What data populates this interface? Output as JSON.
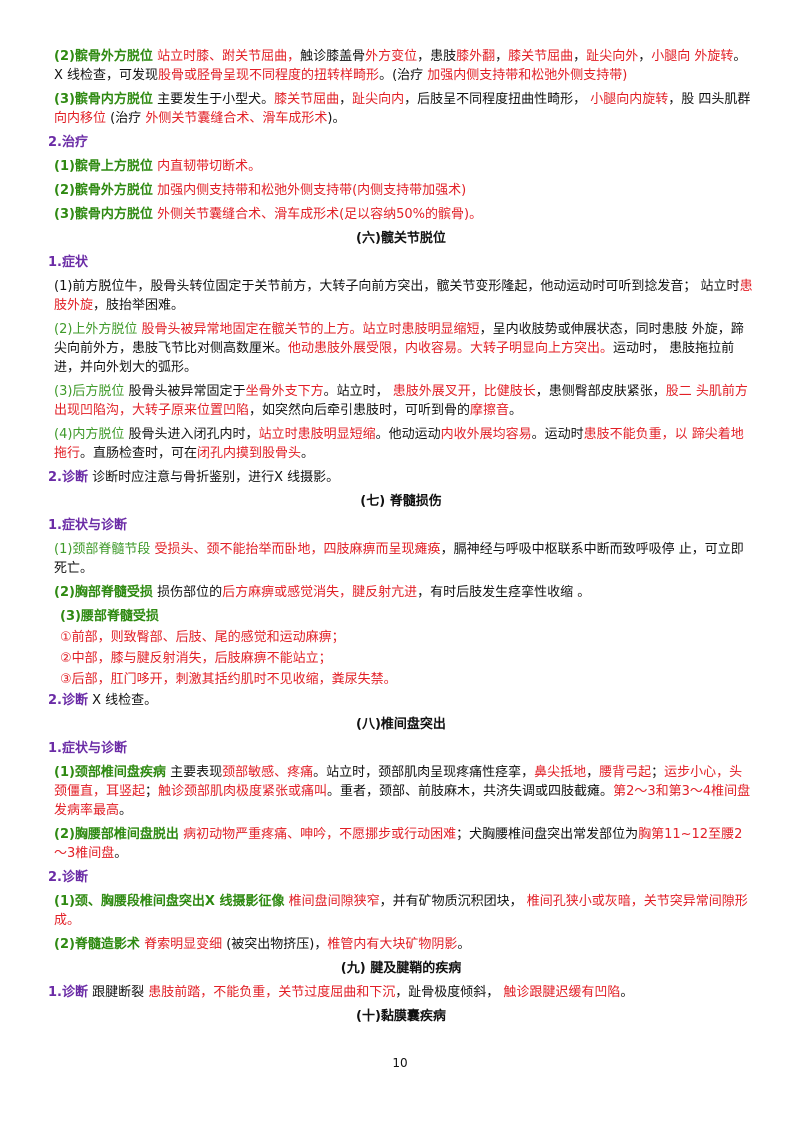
{
  "paragraphs": [
    {
      "kind": "item",
      "runs": [
        {
          "text": "(2)髌骨外方脱位",
          "style": "g"
        },
        {
          "text": " 站立时膝、跗关节屈曲，",
          "style": "r"
        },
        {
          "text": "触诊膝盖骨",
          "style": "k"
        },
        {
          "text": "外方变位",
          "style": "r"
        },
        {
          "text": "，患肢",
          "style": "k"
        },
        {
          "text": "膝外翻",
          "style": "r"
        },
        {
          "text": "，",
          "style": "k"
        },
        {
          "text": "膝关节屈曲",
          "style": "r"
        },
        {
          "text": "，",
          "style": "k"
        },
        {
          "text": "趾尖向外",
          "style": "r"
        },
        {
          "text": "，",
          "style": "k"
        },
        {
          "text": "小腿向 外旋转",
          "style": "r"
        },
        {
          "text": "。X 线检查，可发现",
          "style": "k"
        },
        {
          "text": "股骨或胫骨呈现不同程度的扭转样畸形",
          "style": "r"
        },
        {
          "text": "。(治疗 ",
          "style": "k"
        },
        {
          "text": " 加强内侧支持带和松弛外侧支持带)",
          "style": "r"
        }
      ]
    },
    {
      "kind": "item",
      "runs": [
        {
          "text": "(3)髌骨内方脱位",
          "style": "g"
        },
        {
          "text": " 主要发生于小型犬。",
          "style": "k"
        },
        {
          "text": "膝关节屈曲",
          "style": "r"
        },
        {
          "text": "，",
          "style": "k"
        },
        {
          "text": "趾尖向内",
          "style": "r"
        },
        {
          "text": "，后肢呈不同程度扭曲性畸形， ",
          "style": "k"
        },
        {
          "text": "小腿向内旋转",
          "style": "r"
        },
        {
          "text": "，股 四头肌群",
          "style": "k"
        },
        {
          "text": "向内移位",
          "style": "r"
        },
        {
          "text": " (治疗 ",
          "style": "k"
        },
        {
          "text": " 外侧关节囊缝合术、滑车成形术",
          "style": "r"
        },
        {
          "text": ")。",
          "style": "k"
        }
      ]
    },
    {
      "kind": "sub",
      "runs": [
        {
          "text": "2.治疗",
          "style": "p"
        }
      ]
    },
    {
      "kind": "item",
      "runs": [
        {
          "text": "(1)髌骨上方脱位",
          "style": "g"
        },
        {
          "text": " 内直韧带切断术。",
          "style": "r"
        }
      ]
    },
    {
      "kind": "item",
      "runs": [
        {
          "text": "(2)髌骨外方脱位",
          "style": "g"
        },
        {
          "text": " 加强内侧支持带和松弛外侧支持带(内侧支持带加强术)",
          "style": "r"
        }
      ]
    },
    {
      "kind": "item",
      "runs": [
        {
          "text": "(3)髌骨内方脱位",
          "style": "g"
        },
        {
          "text": " 外侧关节囊缝合术、滑车成形术(足以容纳50%的髌骨)。",
          "style": "r"
        }
      ]
    },
    {
      "kind": "heading",
      "runs": [
        {
          "text": "(六)髋关节脱位",
          "style": "b"
        }
      ]
    },
    {
      "kind": "sub",
      "runs": [
        {
          "text": "1.症状",
          "style": "p"
        }
      ]
    },
    {
      "kind": "item",
      "runs": [
        {
          "text": "(1)前方脱位牛，股骨头转位固定于关节前方，大转子向前方突出，髋关节变形隆起，他动运动时可听到捻发音； 站立时",
          "style": "k"
        },
        {
          "text": "患肢外旋",
          "style": "r"
        },
        {
          "text": "，肢抬举困难。",
          "style": "k"
        }
      ]
    },
    {
      "kind": "item",
      "runs": [
        {
          "text": "(2)上外方脱位",
          "style": "o"
        },
        {
          "text": " 股骨头被异常地固定在髋关节的上方。站立时患肢明显缩短",
          "style": "r"
        },
        {
          "text": "，呈内收肢势或伸展状态，同时患肢 外旋，蹄尖向前外方，患肢飞节比对侧高数厘米。",
          "style": "k"
        },
        {
          "text": "他动患肢外展受限，内收容易。大转子明显向上方突出。",
          "style": "r"
        },
        {
          "text": "运动时， 患肢拖拉前进，并向外划大的弧形。",
          "style": "k"
        }
      ]
    },
    {
      "kind": "item",
      "runs": [
        {
          "text": "(3)后方脱位",
          "style": "o"
        },
        {
          "text": " 股骨头被异常固定于",
          "style": "k"
        },
        {
          "text": "坐骨外支下方",
          "style": "r"
        },
        {
          "text": "。站立时， ",
          "style": "k"
        },
        {
          "text": "患肢外展叉开，比健肢长",
          "style": "r"
        },
        {
          "text": "，患侧臀部皮肤紧张，",
          "style": "k"
        },
        {
          "text": "股二 头肌前方出现凹陷沟，大转子原来位置凹陷",
          "style": "r"
        },
        {
          "text": "，如突然向后牵引患肢时，可听到骨的",
          "style": "k"
        },
        {
          "text": "摩擦音",
          "style": "r"
        },
        {
          "text": "。",
          "style": "k"
        }
      ]
    },
    {
      "kind": "item",
      "runs": [
        {
          "text": "(4)内方脱位",
          "style": "o"
        },
        {
          "text": " 股骨头进入闭孔内时，",
          "style": "k"
        },
        {
          "text": "站立时患肢明显短缩",
          "style": "r"
        },
        {
          "text": "。他动运动",
          "style": "k"
        },
        {
          "text": "内收外展均容易",
          "style": "r"
        },
        {
          "text": "。运动时",
          "style": "k"
        },
        {
          "text": "患肢不能负重，以 蹄尖着地拖行",
          "style": "r"
        },
        {
          "text": "。直肠检查时，可在",
          "style": "k"
        },
        {
          "text": "闭孔内摸到股骨头",
          "style": "r"
        },
        {
          "text": "。",
          "style": "k"
        }
      ]
    },
    {
      "kind": "sub",
      "runs": [
        {
          "text": "2.诊断",
          "style": "p"
        },
        {
          "text": " 诊断时应注意与骨折鉴别，进行X 线摄影。",
          "style": "k"
        }
      ]
    },
    {
      "kind": "heading",
      "runs": [
        {
          "text": "(七) 脊髓损伤",
          "style": "b"
        }
      ]
    },
    {
      "kind": "sub",
      "runs": [
        {
          "text": "1.症状与诊断",
          "style": "p"
        }
      ]
    },
    {
      "kind": "item",
      "runs": [
        {
          "text": "(1)颈部脊髓节段",
          "style": "o"
        },
        {
          "text": " 受损头、颈不能抬举而卧地，四肢麻痹而呈现瘫痪",
          "style": "r"
        },
        {
          "text": "，膈神经与呼吸中枢联系中断而致呼吸停 止，可立即死亡。",
          "style": "k"
        }
      ]
    },
    {
      "kind": "item",
      "runs": [
        {
          "text": "(2)胸部脊髓受损",
          "style": "g"
        },
        {
          "text": " 损伤部位的",
          "style": "k"
        },
        {
          "text": "后方麻痹或感觉消失，腱反射亢进",
          "style": "r"
        },
        {
          "text": "，有时后肢发生痉挛性收缩 。",
          "style": "k"
        }
      ]
    },
    {
      "kind": "item2",
      "runs": [
        {
          "text": "(3)腰部脊髓受损",
          "style": "g"
        }
      ]
    },
    {
      "kind": "item2",
      "runs": [
        {
          "text": "①前部，则致臀部、后肢、尾的感觉和运动麻痹；",
          "style": "r"
        }
      ]
    },
    {
      "kind": "item2",
      "runs": [
        {
          "text": "②中部，膝与腱反射消失，后肢麻痹不能站立；",
          "style": "r"
        }
      ]
    },
    {
      "kind": "item2",
      "runs": [
        {
          "text": "③后部，肛门哆开，刺激其括约肌时不见收缩，粪尿失禁。",
          "style": "r"
        }
      ]
    },
    {
      "kind": "sub",
      "runs": [
        {
          "text": "2.诊断",
          "style": "p"
        },
        {
          "text": " X 线检查。",
          "style": "k"
        }
      ]
    },
    {
      "kind": "heading",
      "runs": [
        {
          "text": "(八)椎间盘突出",
          "style": "b"
        }
      ]
    },
    {
      "kind": "sub",
      "runs": [
        {
          "text": "1.症状与诊断",
          "style": "p"
        }
      ]
    },
    {
      "kind": "item",
      "runs": [
        {
          "text": "(1)颈部椎间盘疾病",
          "style": "g"
        },
        {
          "text": " 主要表现",
          "style": "k"
        },
        {
          "text": "颈部敏感、疼痛",
          "style": "r"
        },
        {
          "text": "。站立时，颈部肌肉呈现疼痛性痉挛，",
          "style": "k"
        },
        {
          "text": "鼻尖抵地",
          "style": "r"
        },
        {
          "text": "，",
          "style": "k"
        },
        {
          "text": "腰背弓起",
          "style": "r"
        },
        {
          "text": "；",
          "style": "k"
        },
        {
          "text": "运步小心，头颈僵直，耳竖起",
          "style": "r"
        },
        {
          "text": "；",
          "style": "k"
        },
        {
          "text": "触诊颈部肌肉极度紧张或痛叫",
          "style": "r"
        },
        {
          "text": "。重者，颈部、前肢麻木，共济失调或四肢截瘫。",
          "style": "k"
        },
        {
          "text": "第2～3和第3～4椎间盘发病率最高",
          "style": "r"
        },
        {
          "text": "。",
          "style": "k"
        }
      ]
    },
    {
      "kind": "item",
      "runs": [
        {
          "text": "(2)胸腰部椎间盘脱出",
          "style": "g"
        },
        {
          "text": " 病初动物严重疼痛、呻吟，不愿挪步或行动困难",
          "style": "r"
        },
        {
          "text": "；犬胸腰椎间盘突出常发部位为",
          "style": "k"
        },
        {
          "text": "胸第11~12至腰2～3椎间盘",
          "style": "r"
        },
        {
          "text": "。",
          "style": "k"
        }
      ]
    },
    {
      "kind": "sub",
      "runs": [
        {
          "text": "2.诊断",
          "style": "p"
        }
      ]
    },
    {
      "kind": "item",
      "runs": [
        {
          "text": "(1)颈、胸腰段椎间盘突出X 线摄影征像",
          "style": "g"
        },
        {
          "text": " 椎间盘间隙狭窄",
          "style": "r"
        },
        {
          "text": "，并有矿物质沉积团块， ",
          "style": "k"
        },
        {
          "text": "椎间孔狭小或灰暗，关节突异常间隙形成。",
          "style": "r"
        }
      ]
    },
    {
      "kind": "item",
      "runs": [
        {
          "text": "(2)脊髓造影术",
          "style": "g"
        },
        {
          "text": " 脊索明显变细",
          "style": "r"
        },
        {
          "text": " (被突出物挤压)，",
          "style": "k"
        },
        {
          "text": "椎管内有大块矿物阴影",
          "style": "r"
        },
        {
          "text": "。",
          "style": "k"
        }
      ]
    },
    {
      "kind": "heading",
      "runs": [
        {
          "text": "(九) 腱及腱鞘的疾病",
          "style": "b"
        }
      ]
    },
    {
      "kind": "sub",
      "runs": [
        {
          "text": "1.诊断",
          "style": "p"
        },
        {
          "text": " 跟腱断裂 ",
          "style": "k"
        },
        {
          "text": "患肢前踏，不能负重，关节过度屈曲和下沉",
          "style": "r"
        },
        {
          "text": "，趾骨极度倾斜， ",
          "style": "k"
        },
        {
          "text": "触诊跟腱迟缓有凹陷",
          "style": "r"
        },
        {
          "text": "。",
          "style": "k"
        }
      ]
    },
    {
      "kind": "heading",
      "runs": [
        {
          "text": "(十)黏膜囊疾病",
          "style": "b"
        }
      ]
    }
  ],
  "page_number": "10"
}
